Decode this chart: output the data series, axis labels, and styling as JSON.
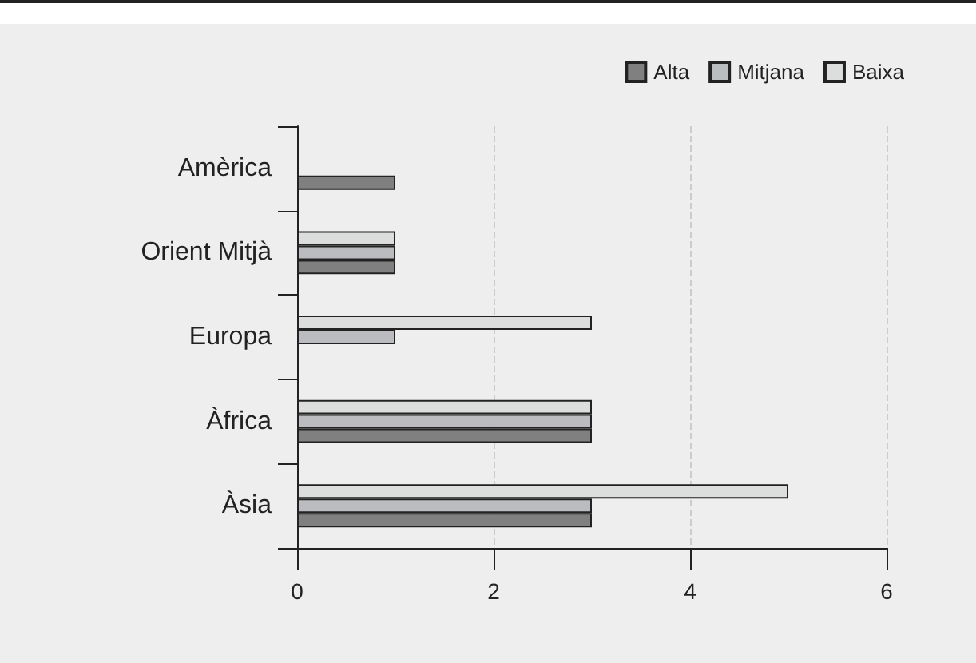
{
  "chart_data": {
    "type": "bar",
    "orientation": "horizontal",
    "categories": [
      "Amèrica",
      "Orient Mitjà",
      "Europa",
      "Àfrica",
      "Àsia"
    ],
    "series": [
      {
        "name": "Alta",
        "color": "#808080",
        "values": [
          1,
          1,
          null,
          3,
          3
        ]
      },
      {
        "name": "Mitjana",
        "color": "#bbbcbf",
        "values": [
          null,
          1,
          1,
          3,
          3
        ]
      },
      {
        "name": "Baixa",
        "color": "#dcdddd",
        "values": [
          null,
          1,
          3,
          3,
          5
        ]
      }
    ],
    "xlim": [
      0,
      6
    ],
    "xticks": [
      0,
      2,
      4,
      6
    ],
    "grid": "x",
    "legend": "top right"
  }
}
